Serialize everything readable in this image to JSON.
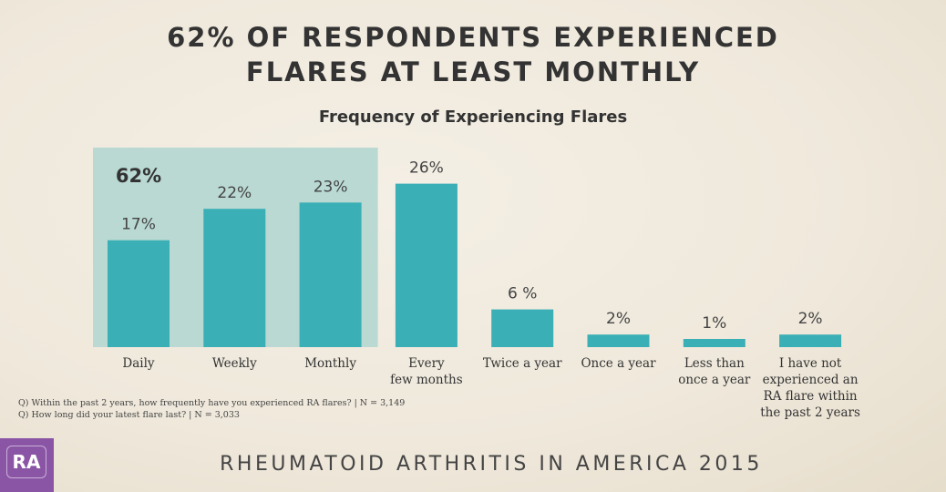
{
  "chart_data": {
    "type": "bar",
    "title": "62% OF RESPONDENTS EXPERIENCED FLARES AT LEAST MONTHLY",
    "title_lines": [
      "62% OF RESPONDENTS EXPERIENCED",
      "FLARES AT LEAST MONTHLY"
    ],
    "subtitle": "Frequency of Experiencing Flares",
    "categories": [
      "Daily",
      "Weekly",
      "Monthly",
      "Every few months",
      "Twice a year",
      "Once a year",
      "Less than once a year",
      "I have not experienced an RA flare within the past 2 years"
    ],
    "category_lines": [
      [
        "Daily"
      ],
      [
        "Weekly"
      ],
      [
        "Monthly"
      ],
      [
        "Every",
        "few months"
      ],
      [
        "Twice a year"
      ],
      [
        "Once a year"
      ],
      [
        "Less than",
        "once a year"
      ],
      [
        "I have not",
        "experienced an",
        "RA flare within",
        "the past 2 years"
      ]
    ],
    "values": [
      17,
      22,
      23,
      26,
      6,
      2,
      1,
      2
    ],
    "data_labels": [
      "17%",
      "22%",
      "23%",
      "26%",
      "6 %",
      "2%",
      "1%",
      "2%"
    ],
    "highlight": {
      "categories": [
        "Daily",
        "Weekly",
        "Monthly"
      ],
      "label": "62%"
    },
    "unit": "%",
    "grid": false,
    "colors": {
      "bar": "#3aafb5",
      "highlight": "#b9d9d2"
    }
  },
  "notes": [
    "Q) Within the past 2 years, how frequently have you experienced RA flares? | N = 3,149",
    "Q) How long did your latest flare last? | N = 3,033"
  ],
  "logo": {
    "text": "RA",
    "color": "#8a55a5"
  },
  "footer": "RHEUMATOID ARTHRITIS IN AMERICA 2015"
}
